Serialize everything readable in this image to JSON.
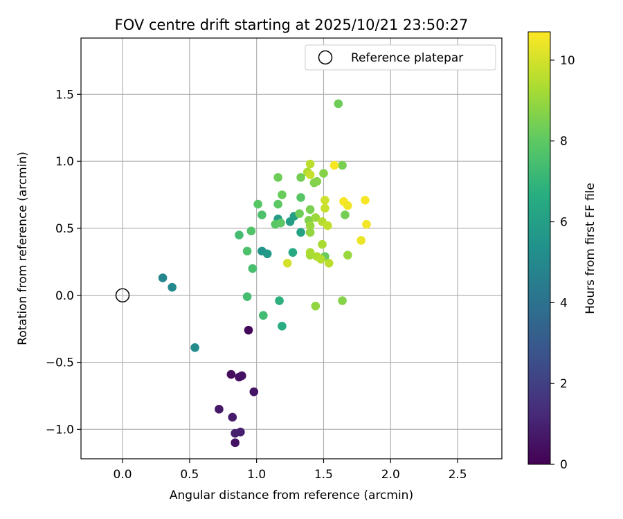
{
  "chart_data": {
    "type": "scatter",
    "title": "FOV centre drift starting at 2025/10/21 23:50:27",
    "xlabel": "Angular distance from reference (arcmin)",
    "ylabel": "Rotation from reference (arcmin)",
    "xlim": [
      -0.31,
      2.83
    ],
    "ylim": [
      -1.22,
      1.92
    ],
    "xticks": [
      0.0,
      0.5,
      1.0,
      1.5,
      2.0,
      2.5
    ],
    "xtick_labels": [
      "0.0",
      "0.5",
      "1.0",
      "1.5",
      "2.0",
      "2.5"
    ],
    "yticks": [
      -1.0,
      -0.5,
      0.0,
      0.5,
      1.0,
      1.5
    ],
    "ytick_labels": [
      "−1.0",
      "−0.5",
      "0.0",
      "0.5",
      "1.0",
      "1.5"
    ],
    "grid": true,
    "legend": {
      "position": "top-right",
      "entries": [
        {
          "label": "Reference platepar",
          "marker": "open-circle"
        }
      ]
    },
    "reference": {
      "x": 0.0,
      "y": 0.0
    },
    "colorbar": {
      "label": "Hours from first FF file",
      "colormap": "viridis",
      "range": [
        0,
        10.7
      ],
      "ticks": [
        0,
        2,
        4,
        6,
        8,
        10
      ],
      "tick_labels": [
        "0",
        "2",
        "4",
        "6",
        "8",
        "10"
      ]
    },
    "series": [
      {
        "name": "FOV centre",
        "points": [
          {
            "x": 0.94,
            "y": -0.26,
            "h": 0.2
          },
          {
            "x": 0.81,
            "y": -0.59,
            "h": 0.3
          },
          {
            "x": 0.87,
            "y": -0.61,
            "h": 0.4
          },
          {
            "x": 0.89,
            "y": -0.6,
            "h": 0.5
          },
          {
            "x": 0.98,
            "y": -0.72,
            "h": 0.6
          },
          {
            "x": 0.72,
            "y": -0.85,
            "h": 0.7
          },
          {
            "x": 0.82,
            "y": -0.91,
            "h": 0.8
          },
          {
            "x": 0.84,
            "y": -1.03,
            "h": 0.9
          },
          {
            "x": 0.88,
            "y": -1.02,
            "h": 0.9
          },
          {
            "x": 0.84,
            "y": -1.1,
            "h": 0.5
          },
          {
            "x": 0.3,
            "y": 0.13,
            "h": 4.9
          },
          {
            "x": 0.37,
            "y": 0.06,
            "h": 5.0
          },
          {
            "x": 0.54,
            "y": -0.39,
            "h": 5.1
          },
          {
            "x": 1.04,
            "y": 0.33,
            "h": 5.6
          },
          {
            "x": 1.08,
            "y": 0.31,
            "h": 5.7
          },
          {
            "x": 1.16,
            "y": 0.57,
            "h": 5.8
          },
          {
            "x": 1.25,
            "y": 0.55,
            "h": 5.9
          },
          {
            "x": 1.28,
            "y": 0.59,
            "h": 6.0
          },
          {
            "x": 1.33,
            "y": 0.47,
            "h": 6.1
          },
          {
            "x": 1.27,
            "y": 0.32,
            "h": 6.4
          },
          {
            "x": 1.19,
            "y": -0.23,
            "h": 6.6
          },
          {
            "x": 1.17,
            "y": -0.04,
            "h": 6.8
          },
          {
            "x": 1.05,
            "y": -0.15,
            "h": 7.3
          },
          {
            "x": 0.93,
            "y": -0.01,
            "h": 7.4
          },
          {
            "x": 0.97,
            "y": 0.2,
            "h": 7.5
          },
          {
            "x": 0.93,
            "y": 0.33,
            "h": 7.6
          },
          {
            "x": 0.87,
            "y": 0.45,
            "h": 7.4
          },
          {
            "x": 0.96,
            "y": 0.48,
            "h": 7.7
          },
          {
            "x": 1.04,
            "y": 0.6,
            "h": 7.6
          },
          {
            "x": 1.01,
            "y": 0.68,
            "h": 7.9
          },
          {
            "x": 1.14,
            "y": 0.53,
            "h": 7.9
          },
          {
            "x": 1.18,
            "y": 0.54,
            "h": 8.0
          },
          {
            "x": 1.16,
            "y": 0.68,
            "h": 8.0
          },
          {
            "x": 1.19,
            "y": 0.75,
            "h": 8.2
          },
          {
            "x": 1.16,
            "y": 0.88,
            "h": 8.3
          },
          {
            "x": 1.33,
            "y": 0.88,
            "h": 8.4
          },
          {
            "x": 1.33,
            "y": 0.73,
            "h": 7.9
          },
          {
            "x": 1.32,
            "y": 0.61,
            "h": 8.3
          },
          {
            "x": 1.4,
            "y": 0.64,
            "h": 8.5
          },
          {
            "x": 1.39,
            "y": 0.56,
            "h": 8.6
          },
          {
            "x": 1.43,
            "y": 0.84,
            "h": 8.6
          },
          {
            "x": 1.45,
            "y": 0.85,
            "h": 8.7
          },
          {
            "x": 1.5,
            "y": 0.91,
            "h": 8.7
          },
          {
            "x": 1.61,
            "y": 1.43,
            "h": 8.3
          },
          {
            "x": 1.64,
            "y": 0.97,
            "h": 8.5
          },
          {
            "x": 1.66,
            "y": 0.6,
            "h": 8.4
          },
          {
            "x": 1.64,
            "y": -0.04,
            "h": 8.7
          },
          {
            "x": 1.44,
            "y": -0.08,
            "h": 8.9
          },
          {
            "x": 1.51,
            "y": 0.29,
            "h": 8.2
          },
          {
            "x": 1.4,
            "y": 0.47,
            "h": 8.9
          },
          {
            "x": 1.4,
            "y": 0.52,
            "h": 9.0
          },
          {
            "x": 1.44,
            "y": 0.58,
            "h": 9.1
          },
          {
            "x": 1.4,
            "y": 0.3,
            "h": 9.2
          },
          {
            "x": 1.4,
            "y": 0.32,
            "h": 9.3
          },
          {
            "x": 1.45,
            "y": 0.29,
            "h": 9.4
          },
          {
            "x": 1.48,
            "y": 0.27,
            "h": 9.5
          },
          {
            "x": 1.49,
            "y": 0.38,
            "h": 9.3
          },
          {
            "x": 1.54,
            "y": 0.24,
            "h": 9.6
          },
          {
            "x": 1.49,
            "y": 0.55,
            "h": 9.5
          },
          {
            "x": 1.53,
            "y": 0.52,
            "h": 9.7
          },
          {
            "x": 1.51,
            "y": 0.65,
            "h": 9.8
          },
          {
            "x": 1.51,
            "y": 0.71,
            "h": 9.9
          },
          {
            "x": 1.68,
            "y": 0.3,
            "h": 9.0
          },
          {
            "x": 1.38,
            "y": 0.92,
            "h": 9.4
          },
          {
            "x": 1.4,
            "y": 0.98,
            "h": 9.6
          },
          {
            "x": 1.4,
            "y": 0.9,
            "h": 9.8
          },
          {
            "x": 1.23,
            "y": 0.24,
            "h": 10.0
          },
          {
            "x": 1.58,
            "y": 0.97,
            "h": 10.6
          },
          {
            "x": 1.65,
            "y": 0.7,
            "h": 10.6
          },
          {
            "x": 1.68,
            "y": 0.67,
            "h": 10.5
          },
          {
            "x": 1.81,
            "y": 0.71,
            "h": 10.6
          },
          {
            "x": 1.82,
            "y": 0.53,
            "h": 10.5
          },
          {
            "x": 1.78,
            "y": 0.41,
            "h": 10.4
          }
        ]
      }
    ]
  }
}
